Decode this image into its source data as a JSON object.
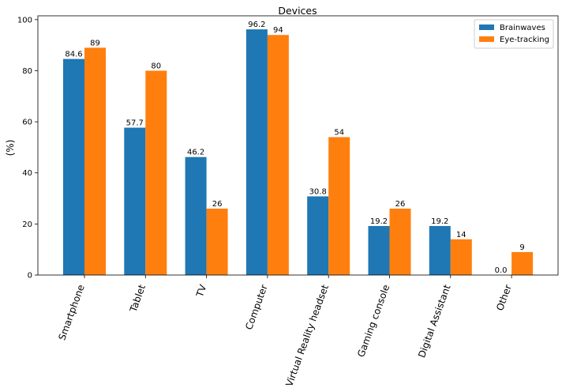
{
  "chart_data": {
    "type": "bar",
    "title": "Devices",
    "xlabel": "",
    "ylabel": "(%)",
    "ylim": [
      0,
      100
    ],
    "yticks": [
      0,
      20,
      40,
      60,
      80,
      100
    ],
    "categories": [
      "Smartphone",
      "Tablet",
      "TV",
      "Computer",
      "Virtual Reality headset",
      "Gaming console",
      "Digital Assistant",
      "Other"
    ],
    "series": [
      {
        "name": "Brainwaves",
        "color": "#1f77b4",
        "values": [
          84.6,
          57.7,
          46.2,
          96.2,
          30.8,
          19.2,
          19.2,
          0.0
        ],
        "labels": [
          "84.6",
          "57.7",
          "46.2",
          "96.2",
          "30.8",
          "19.2",
          "19.2",
          "0.0"
        ]
      },
      {
        "name": "Eye-tracking",
        "color": "#ff7f0e",
        "values": [
          89,
          80,
          26,
          94,
          54,
          26,
          14,
          9
        ],
        "labels": [
          "89",
          "80",
          "26",
          "94",
          "54",
          "26",
          "14",
          "9"
        ]
      }
    ],
    "legend_position": "top-right",
    "grid": false
  }
}
